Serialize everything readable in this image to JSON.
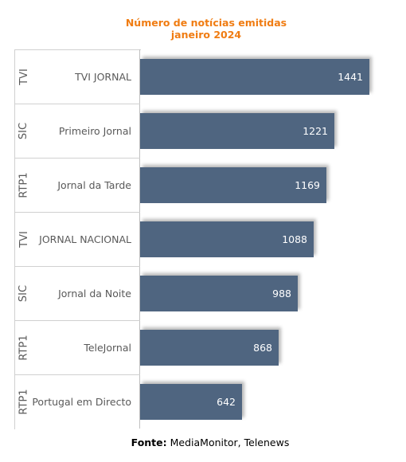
{
  "chart_data": {
    "type": "bar",
    "orientation": "horizontal",
    "title": "Número de notícias emitidas",
    "subtitle": "janeiro 2024",
    "categories": [
      {
        "channel": "TVI",
        "program": "TVI JORNAL"
      },
      {
        "channel": "SIC",
        "program": "Primeiro Jornal"
      },
      {
        "channel": "RTP1",
        "program": "Jornal da Tarde"
      },
      {
        "channel": "TVI",
        "program": "JORNAL NACIONAL"
      },
      {
        "channel": "SIC",
        "program": "Jornal da Noite"
      },
      {
        "channel": "RTP1",
        "program": "TeleJornal"
      },
      {
        "channel": "RTP1",
        "program": "Portugal em Directo"
      }
    ],
    "values": [
      1441,
      1221,
      1169,
      1088,
      988,
      868,
      642
    ],
    "xlim": [
      0,
      1500
    ],
    "bar_color": "#4f6580",
    "grid": false,
    "legend": "none"
  },
  "title_color": "#f07c12",
  "source": {
    "label": "Fonte:",
    "text": " MediaMonitor, Telenews"
  }
}
